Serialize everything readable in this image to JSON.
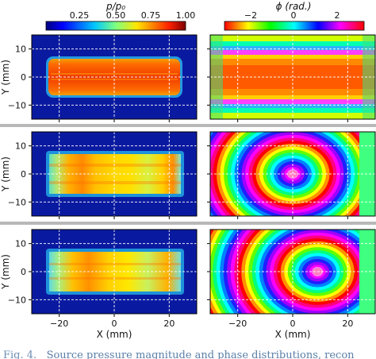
{
  "colorbars": [
    {
      "label": "p/p₀",
      "ticks": [
        "0.25",
        "0.50",
        "0.75",
        "1.00"
      ],
      "range": [
        0,
        1
      ],
      "colormap": "jet"
    },
    {
      "label": "ϕ (rad.)",
      "ticks": [
        "−2",
        "0",
        "2"
      ],
      "range": [
        -3.14,
        3.14
      ],
      "colormap": "hsv"
    }
  ],
  "caption": {
    "label": "Fig. 4.",
    "text": "Source pressure magnitude and phase distributions, recon"
  },
  "chart_data": [
    {
      "type": "heatmap",
      "panel": "row1-magnitude",
      "xlim": [
        -30,
        30
      ],
      "ylim": [
        -15,
        15
      ],
      "ylabel": "Y (mm)",
      "x_ticks": [
        "−20",
        "0",
        "20"
      ],
      "y_ticks": [
        "10",
        "0",
        "−10"
      ],
      "source": {
        "x": [
          -24,
          24
        ],
        "y": [
          -7,
          7
        ]
      }
    },
    {
      "type": "heatmap",
      "panel": "row1-phase",
      "xlim": [
        -30,
        30
      ],
      "ylim": [
        -15,
        15
      ],
      "phase_focus": "none"
    },
    {
      "type": "heatmap",
      "panel": "row2-magnitude",
      "xlim": [
        -30,
        30
      ],
      "ylim": [
        -15,
        15
      ],
      "ylabel": "Y (mm)",
      "x_ticks": [
        "−20",
        "0",
        "20"
      ],
      "y_ticks": [
        "10",
        "0",
        "−10"
      ],
      "source": {
        "x": [
          -24,
          24
        ],
        "y": [
          -7,
          7
        ]
      }
    },
    {
      "type": "heatmap",
      "panel": "row2-phase",
      "xlim": [
        -30,
        30
      ],
      "ylim": [
        -15,
        15
      ],
      "phase_focus": [
        0,
        0
      ]
    },
    {
      "type": "heatmap",
      "panel": "row3-magnitude",
      "xlim": [
        -30,
        30
      ],
      "ylim": [
        -15,
        15
      ],
      "ylabel": "Y (mm)",
      "xlabel": "X (mm)",
      "x_ticks": [
        "−20",
        "0",
        "20"
      ],
      "y_ticks": [
        "10",
        "0",
        "−10"
      ],
      "source": {
        "x": [
          -24,
          24
        ],
        "y": [
          -7,
          7
        ]
      }
    },
    {
      "type": "heatmap",
      "panel": "row3-phase",
      "xlim": [
        -30,
        30
      ],
      "ylim": [
        -15,
        15
      ],
      "xlabel": "X (mm)",
      "phase_focus": [
        9,
        0
      ]
    }
  ]
}
